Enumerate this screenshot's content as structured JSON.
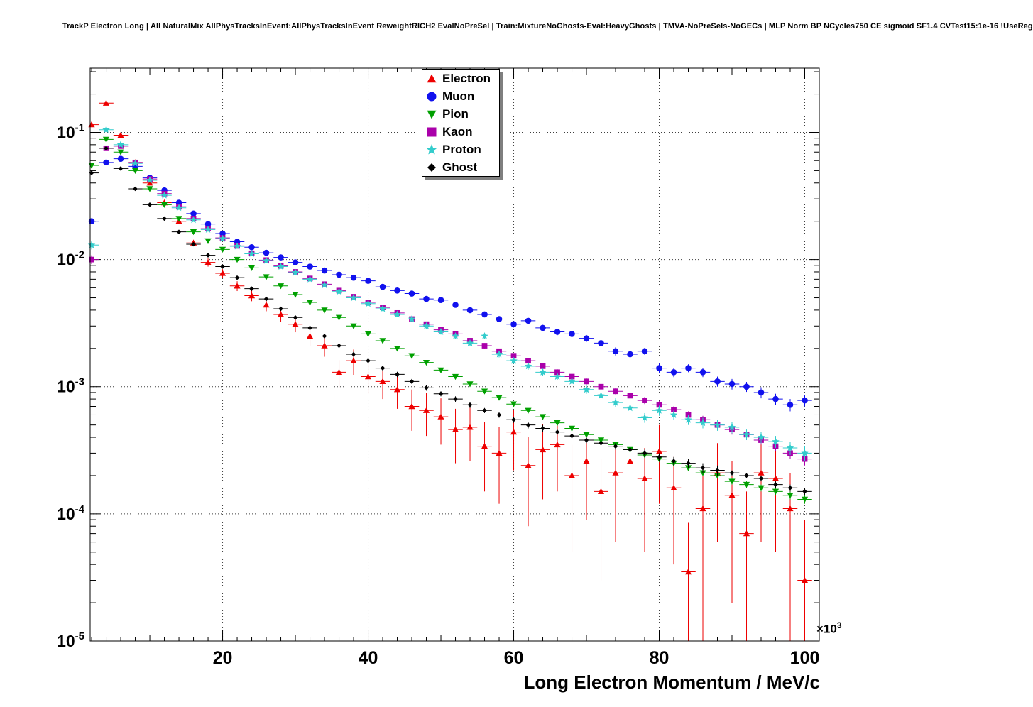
{
  "header": {
    "title": "TrackP Electron Long | All NaturalMix AllPhysTracksInEvent:AllPhysTracksInEvent ReweightRICH2 EvalNoPreSel | Train:MixtureNoGhosts-Eval:HeavyGhosts | TMVA-NoPreSels-NoGECs | MLP Norm BP NCycles750 CE sigmoid SF1.4 CVTest15:1e-16 !UseReg"
  },
  "chart_data": {
    "type": "scatter",
    "yscale": "log",
    "xscale": "linear",
    "xlabel": "Long Electron Momentum / MeV/c",
    "x_exponent_base": "×10",
    "x_exponent_power": "3",
    "xlim": [
      1.8,
      102
    ],
    "ylim": [
      1e-05,
      0.32
    ],
    "xticks": [
      20,
      40,
      60,
      80,
      100
    ],
    "ytick_exponents": [
      -1,
      -2,
      -3,
      -4,
      -5
    ],
    "grid": "dotted",
    "legend_position": "top-center-inside",
    "x": [
      2,
      4,
      6,
      8,
      10,
      12,
      14,
      16,
      18,
      20,
      22,
      24,
      26,
      28,
      30,
      32,
      34,
      36,
      38,
      40,
      42,
      44,
      46,
      48,
      50,
      52,
      54,
      56,
      58,
      60,
      62,
      64,
      66,
      68,
      70,
      72,
      74,
      76,
      78,
      80,
      82,
      84,
      86,
      88,
      90,
      92,
      94,
      96,
      98,
      100
    ],
    "series": [
      {
        "name": "Electron",
        "marker": "triangle-up",
        "color": "#ee0000",
        "values": [
          0.115,
          0.17,
          0.095,
          0.058,
          0.04,
          0.028,
          0.02,
          0.0135,
          0.0095,
          0.0078,
          0.0062,
          0.0052,
          0.0044,
          0.0037,
          0.0031,
          0.0025,
          0.0021,
          0.0013,
          0.0016,
          0.0012,
          0.0011,
          0.00095,
          0.0007,
          0.00065,
          0.00058,
          0.00046,
          0.00048,
          0.00034,
          0.0003,
          0.00044,
          0.00024,
          0.00032,
          0.00035,
          0.0002,
          0.00026,
          0.00015,
          0.00021,
          0.00026,
          0.00019,
          0.00031,
          0.00016,
          3.5e-05,
          0.00011,
          0.00021,
          0.00014,
          7e-05,
          0.00021,
          0.00019,
          0.00011,
          3e-05
        ],
        "yerr": [
          0.004,
          0.005,
          0.003,
          0.002,
          0.0015,
          0.0012,
          0.001,
          0.0008,
          0.0007,
          0.0006,
          0.00055,
          0.0005,
          0.00048,
          0.00045,
          0.00042,
          0.0004,
          0.00038,
          0.00032,
          0.00036,
          0.00032,
          0.0003,
          0.00028,
          0.00025,
          0.00024,
          0.00023,
          0.00021,
          0.00022,
          0.00019,
          0.00018,
          0.00022,
          0.00016,
          0.00019,
          0.0002,
          0.00015,
          0.00017,
          0.00012,
          0.00015,
          0.00017,
          0.00014,
          0.00019,
          0.00012,
          5e-05,
          0.0001,
          0.00015,
          0.00012,
          8e-05,
          0.00015,
          0.00014,
          0.0001,
          6e-05
        ]
      },
      {
        "name": "Muon",
        "marker": "circle",
        "color": "#1111ee",
        "values": [
          0.02,
          0.058,
          0.062,
          0.054,
          0.044,
          0.035,
          0.028,
          0.023,
          0.019,
          0.016,
          0.0138,
          0.0125,
          0.0113,
          0.0104,
          0.0095,
          0.0088,
          0.0082,
          0.0076,
          0.0072,
          0.0068,
          0.0061,
          0.0057,
          0.0054,
          0.0049,
          0.0048,
          0.0044,
          0.004,
          0.0037,
          0.0034,
          0.0031,
          0.0033,
          0.0029,
          0.0027,
          0.0026,
          0.0024,
          0.0022,
          0.0019,
          0.0018,
          0.0019,
          0.0014,
          0.0013,
          0.0014,
          0.0013,
          0.0011,
          0.00105,
          0.001,
          0.0009,
          0.0008,
          0.00072,
          0.00078
        ],
        "yerr": [
          0.001,
          0.0012,
          0.0012,
          0.0011,
          0.001,
          0.0009,
          0.0008,
          0.0007,
          0.0006,
          0.0005,
          0.00045,
          0.0004,
          0.00038,
          0.00036,
          0.00034,
          0.00032,
          0.0003,
          0.00028,
          0.00027,
          0.00026,
          0.00025,
          0.00024,
          0.00023,
          0.00021,
          0.00021,
          0.0002,
          0.00019,
          0.00018,
          0.00019,
          0.00018,
          0.00017,
          0.00016,
          0.00016,
          0.00015,
          0.00015,
          0.00014,
          0.00014,
          0.00013,
          0.00012,
          0.00012,
          0.00011,
          0.0001,
          0.00011,
          0.0001,
          0.0001,
          9e-05,
          9e-05,
          8e-05,
          8e-05,
          8e-05
        ]
      },
      {
        "name": "Pion",
        "marker": "triangle-down",
        "color": "#00a000",
        "values": [
          0.055,
          0.088,
          0.07,
          0.05,
          0.036,
          0.027,
          0.021,
          0.0165,
          0.014,
          0.012,
          0.01,
          0.0086,
          0.0073,
          0.0062,
          0.0053,
          0.0046,
          0.004,
          0.0035,
          0.003,
          0.0026,
          0.0023,
          0.002,
          0.00175,
          0.00155,
          0.00135,
          0.0012,
          0.00105,
          0.00092,
          0.00082,
          0.00073,
          0.00065,
          0.00058,
          0.00052,
          0.00047,
          0.00042,
          0.00038,
          0.00035,
          0.00032,
          0.00029,
          0.00027,
          0.00025,
          0.00023,
          0.00021,
          0.0002,
          0.00018,
          0.00017,
          0.00016,
          0.00015,
          0.00014,
          0.00013
        ],
        "yerr": [
          0.0012,
          0.0012,
          0.001,
          0.0008,
          0.0006,
          0.00045,
          0.00035,
          0.0003,
          0.00026,
          0.00022,
          0.00019,
          0.00016,
          0.00014,
          0.00012,
          0.00011,
          0.0001,
          9e-05,
          8e-05,
          7e-05,
          6e-05,
          6e-05,
          5e-05,
          5e-05,
          4e-05,
          4e-05,
          4e-05,
          3e-05,
          3e-05,
          3e-05,
          3e-05,
          2e-05,
          2e-05,
          2e-05,
          2e-05,
          2e-05,
          2e-05,
          2e-05,
          2e-05,
          1e-05,
          1e-05,
          1e-05,
          1e-05,
          1e-05,
          1e-05,
          1e-05,
          1e-05,
          1e-05,
          1e-05,
          1e-05,
          1e-05
        ]
      },
      {
        "name": "Kaon",
        "marker": "square",
        "color": "#aa00aa",
        "values": [
          0.01,
          0.075,
          0.078,
          0.058,
          0.043,
          0.033,
          0.026,
          0.021,
          0.0175,
          0.0148,
          0.0128,
          0.0112,
          0.0099,
          0.0089,
          0.008,
          0.0071,
          0.0064,
          0.0057,
          0.0051,
          0.0046,
          0.0042,
          0.0038,
          0.0034,
          0.0031,
          0.0028,
          0.0026,
          0.0023,
          0.0021,
          0.0019,
          0.00175,
          0.0016,
          0.00145,
          0.0013,
          0.0012,
          0.0011,
          0.001,
          0.00092,
          0.00085,
          0.00078,
          0.00072,
          0.00066,
          0.0006,
          0.00055,
          0.0005,
          0.00046,
          0.00042,
          0.00038,
          0.00034,
          0.0003,
          0.00027
        ],
        "yerr": [
          0.0008,
          0.002,
          0.002,
          0.0015,
          0.0012,
          0.001,
          0.0008,
          0.0007,
          0.0006,
          0.0005,
          0.00045,
          0.0004,
          0.00036,
          0.00032,
          0.00029,
          0.00026,
          0.00024,
          0.00022,
          0.0002,
          0.00018,
          0.00017,
          0.00015,
          0.00014,
          0.00013,
          0.00012,
          0.00011,
          0.0001,
          0.0001,
          9e-05,
          8e-05,
          8e-05,
          7e-05,
          7e-05,
          6e-05,
          6e-05,
          6e-05,
          5e-05,
          5e-05,
          5e-05,
          5e-05,
          4e-05,
          4e-05,
          4e-05,
          4e-05,
          4e-05,
          3e-05,
          3e-05,
          3e-05,
          3e-05,
          3e-05
        ]
      },
      {
        "name": "Proton",
        "marker": "star",
        "color": "#33cccc",
        "values": [
          0.013,
          0.105,
          0.08,
          0.057,
          0.042,
          0.032,
          0.0255,
          0.0205,
          0.0172,
          0.0146,
          0.0127,
          0.0111,
          0.0098,
          0.0088,
          0.0079,
          0.007,
          0.0063,
          0.0056,
          0.005,
          0.0045,
          0.0041,
          0.0037,
          0.0034,
          0.003,
          0.0027,
          0.0025,
          0.0022,
          0.0025,
          0.0018,
          0.0016,
          0.00145,
          0.0013,
          0.0012,
          0.0011,
          0.00095,
          0.00085,
          0.00075,
          0.00068,
          0.00057,
          0.00065,
          0.0006,
          0.00055,
          0.00052,
          0.0005,
          0.00048,
          0.00042,
          0.0004,
          0.00037,
          0.00033,
          0.0003
        ],
        "yerr": [
          0.001,
          0.0025,
          0.002,
          0.0015,
          0.0012,
          0.001,
          0.0008,
          0.0007,
          0.0006,
          0.0005,
          0.00045,
          0.0004,
          0.00036,
          0.00033,
          0.0003,
          0.00027,
          0.00025,
          0.00023,
          0.00021,
          0.00019,
          0.00018,
          0.00016,
          0.00015,
          0.00014,
          0.00013,
          0.00012,
          0.00011,
          0.00012,
          0.0001,
          9e-05,
          9e-05,
          8e-05,
          8e-05,
          7e-05,
          7e-05,
          6e-05,
          6e-05,
          6e-05,
          5e-05,
          6e-05,
          5e-05,
          5e-05,
          5e-05,
          5e-05,
          5e-05,
          4e-05,
          4e-05,
          4e-05,
          4e-05,
          4e-05
        ]
      },
      {
        "name": "Ghost",
        "marker": "diamond",
        "color": "#000000",
        "values": [
          0.048,
          0.075,
          0.052,
          0.036,
          0.027,
          0.021,
          0.0165,
          0.0132,
          0.0108,
          0.0088,
          0.0072,
          0.0059,
          0.0049,
          0.0041,
          0.0035,
          0.0029,
          0.0025,
          0.0021,
          0.0018,
          0.0016,
          0.0014,
          0.00125,
          0.0011,
          0.00098,
          0.00088,
          0.0008,
          0.00072,
          0.00065,
          0.0006,
          0.00055,
          0.0005,
          0.00047,
          0.00044,
          0.00041,
          0.00038,
          0.00036,
          0.00034,
          0.00032,
          0.0003,
          0.00028,
          0.00026,
          0.00025,
          0.00023,
          0.00022,
          0.00021,
          0.0002,
          0.00019,
          0.00017,
          0.00016,
          0.00015
        ],
        "yerr": [
          0.0015,
          0.002,
          0.0015,
          0.001,
          0.0008,
          0.0006,
          0.0005,
          0.0004,
          0.00035,
          0.0003,
          0.00025,
          0.00021,
          0.00018,
          0.00015,
          0.00013,
          0.00011,
          0.0001,
          9e-05,
          8e-05,
          7e-05,
          6e-05,
          6e-05,
          5e-05,
          5e-05,
          4e-05,
          4e-05,
          4e-05,
          3e-05,
          3e-05,
          3e-05,
          3e-05,
          3e-05,
          2e-05,
          2e-05,
          2e-05,
          2e-05,
          2e-05,
          2e-05,
          2e-05,
          2e-05,
          2e-05,
          2e-05,
          2e-05,
          2e-05,
          1e-05,
          1e-05,
          1e-05,
          1e-05,
          1e-05,
          1e-05
        ]
      }
    ]
  }
}
